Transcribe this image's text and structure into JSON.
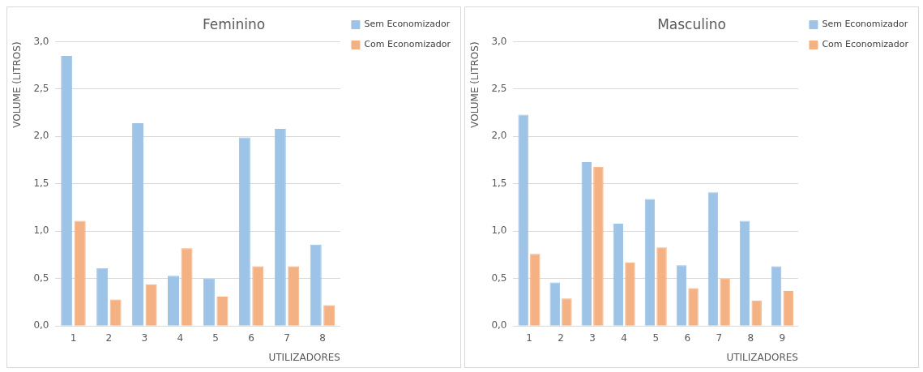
{
  "chart_data": [
    {
      "type": "bar",
      "title": "Feminino",
      "xlabel": "UTILIZADORES",
      "ylabel": "VOLUME (LITROS)",
      "categories": [
        "1",
        "2",
        "3",
        "4",
        "5",
        "6",
        "7",
        "8"
      ],
      "series": [
        {
          "name": "Sem Economizador",
          "color": "#9dc3e6",
          "values": [
            2.85,
            0.61,
            2.14,
            0.53,
            0.5,
            1.99,
            2.08,
            0.86
          ]
        },
        {
          "name": "Com Economizador",
          "color": "#f4b183",
          "values": [
            1.11,
            0.28,
            0.44,
            0.82,
            0.31,
            0.63,
            0.63,
            0.22
          ]
        }
      ],
      "ylim": [
        0,
        3
      ],
      "yticks": [
        {
          "value": 0,
          "label": "0,0"
        },
        {
          "value": 0.5,
          "label": "0,5"
        },
        {
          "value": 1,
          "label": "1,0"
        },
        {
          "value": 1.5,
          "label": "1,5"
        },
        {
          "value": 2,
          "label": "2,0"
        },
        {
          "value": 2.5,
          "label": "2,5"
        },
        {
          "value": 3,
          "label": "3,0"
        }
      ],
      "grid": "y",
      "legend": "top right"
    },
    {
      "type": "bar",
      "title": "Masculino",
      "xlabel": "UTILIZADORES",
      "ylabel": "VOLUME (LITROS)",
      "categories": [
        "1",
        "2",
        "3",
        "4",
        "5",
        "6",
        "7",
        "8",
        "9"
      ],
      "series": [
        {
          "name": "Sem Economizador",
          "color": "#9dc3e6",
          "values": [
            2.23,
            0.46,
            1.73,
            1.08,
            1.34,
            0.64,
            1.41,
            1.11,
            0.63
          ]
        },
        {
          "name": "Com Economizador",
          "color": "#f4b183",
          "values": [
            0.76,
            0.29,
            1.68,
            0.67,
            0.83,
            0.4,
            0.5,
            0.27,
            0.37
          ]
        }
      ],
      "ylim": [
        0,
        3
      ],
      "yticks": [
        {
          "value": 0,
          "label": "0,0"
        },
        {
          "value": 0.5,
          "label": "0,5"
        },
        {
          "value": 1,
          "label": "1,0"
        },
        {
          "value": 1.5,
          "label": "1,5"
        },
        {
          "value": 2,
          "label": "2,0"
        },
        {
          "value": 2.5,
          "label": "2,5"
        },
        {
          "value": 3,
          "label": "3,0"
        }
      ],
      "grid": "y",
      "legend": "top right"
    }
  ]
}
